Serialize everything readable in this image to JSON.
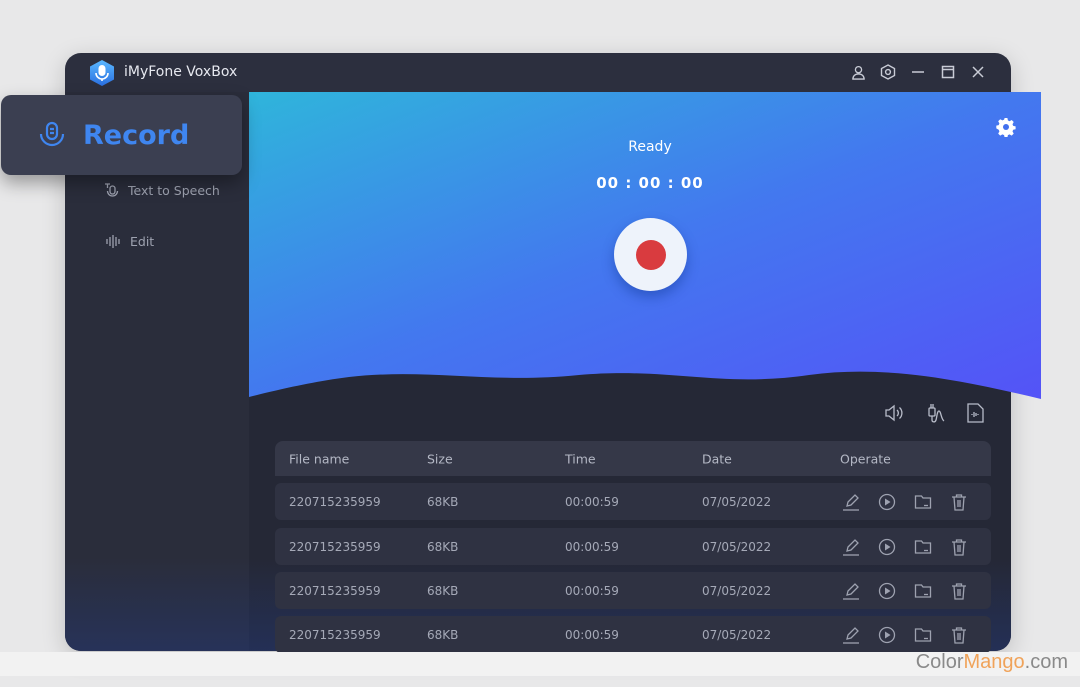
{
  "app": {
    "title": "iMyFone VoxBox"
  },
  "titlebar": {
    "icons": [
      "user-icon",
      "settings-hex-icon",
      "minimize-icon",
      "maximize-icon",
      "close-icon"
    ]
  },
  "sidebar": {
    "items": [
      {
        "label": "Record",
        "icon": "microphone-icon",
        "active": true
      },
      {
        "label": "Text to Speech",
        "icon": "text-to-speech-icon"
      },
      {
        "label": "Edit",
        "icon": "waveform-icon"
      }
    ]
  },
  "recorder": {
    "status": "Ready",
    "timer": "00 : 00 : 00",
    "record_color": "#d93b3f"
  },
  "colors": {
    "accent": "#3f86f0",
    "banner_start": "#2fb5db",
    "banner_end": "#5453f7"
  },
  "tools": [
    "speaker-icon",
    "microphone-plug-icon",
    "audio-file-icon"
  ],
  "table": {
    "headers": [
      "File name",
      "Size",
      "Time",
      "Date",
      "Operate"
    ],
    "rows": [
      {
        "name": "220715235959",
        "size": "68KB",
        "time": "00:00:59",
        "date": "07/05/2022"
      },
      {
        "name": "220715235959",
        "size": "68KB",
        "time": "00:00:59",
        "date": "07/05/2022"
      },
      {
        "name": "220715235959",
        "size": "68KB",
        "time": "00:00:59",
        "date": "07/05/2022"
      },
      {
        "name": "220715235959",
        "size": "68KB",
        "time": "00:00:59",
        "date": "07/05/2022"
      }
    ],
    "operate_icons": [
      "edit-icon",
      "play-icon",
      "folder-icon",
      "trash-icon"
    ]
  },
  "watermark": {
    "part1": "Color",
    "part2": "Mango",
    "part3": ".com"
  }
}
